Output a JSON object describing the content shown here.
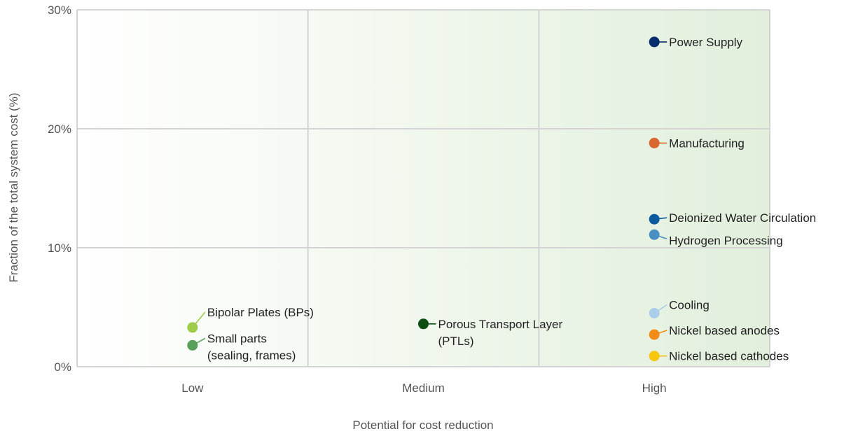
{
  "chart_data": {
    "type": "scatter",
    "xlabel": "Potential for cost reduction",
    "ylabel": "Fraction of the total system cost (%)",
    "x_categories": [
      "Low",
      "Medium",
      "High"
    ],
    "ylim": [
      0,
      30
    ],
    "y_ticks": [
      {
        "value": 0,
        "label": "0%"
      },
      {
        "value": 10,
        "label": "10%"
      },
      {
        "value": 20,
        "label": "20%"
      },
      {
        "value": 30,
        "label": "30%"
      }
    ],
    "grid": true,
    "background": "green gradient increasing toward High",
    "points": [
      {
        "label": [
          "Power Supply"
        ],
        "x": "High",
        "y": 27.3,
        "color": "#0a2d6e"
      },
      {
        "label": [
          "Manufacturing"
        ],
        "x": "High",
        "y": 18.8,
        "color": "#d9662e"
      },
      {
        "label": [
          "Deionized Water Circulation"
        ],
        "x": "High",
        "y": 12.4,
        "color": "#0c5a9e"
      },
      {
        "label": [
          "Hydrogen Processing"
        ],
        "x": "High",
        "y": 11.1,
        "color": "#4a8fc2"
      },
      {
        "label": [
          "Cooling"
        ],
        "x": "High",
        "y": 4.5,
        "color": "#a9cdea"
      },
      {
        "label": [
          "Nickel based anodes"
        ],
        "x": "High",
        "y": 2.7,
        "color": "#f28c16"
      },
      {
        "label": [
          "Nickel based cathodes"
        ],
        "x": "High",
        "y": 0.9,
        "color": "#f7c60e"
      },
      {
        "label": [
          "Porous Transport Layer",
          "(PTLs)"
        ],
        "x": "Medium",
        "y": 3.6,
        "color": "#0e4d12"
      },
      {
        "label": [
          "Bipolar Plates (BPs)"
        ],
        "x": "Low",
        "y": 3.3,
        "color": "#9ecb4a"
      },
      {
        "label": [
          "Small parts",
          "(sealing, frames)"
        ],
        "x": "Low",
        "y": 1.8,
        "color": "#58a05a"
      }
    ]
  }
}
